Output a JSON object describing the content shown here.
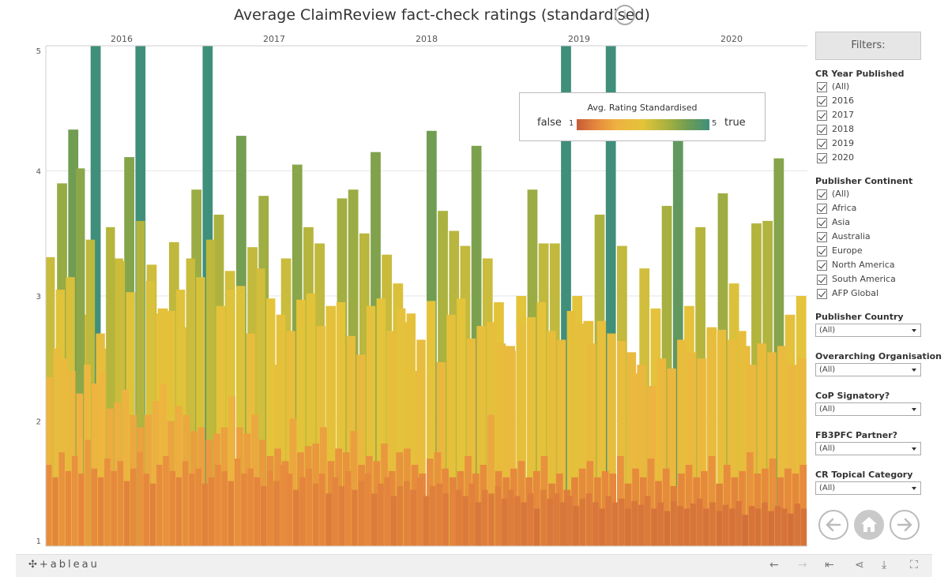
{
  "title": "Average ClaimReview fact-check ratings (standardised)",
  "info_icon": "info-icon",
  "legend": {
    "title": "Avg. Rating Standardised",
    "left_label": "false",
    "right_label": "true",
    "min": "1",
    "max": "5"
  },
  "filters": {
    "button": "Filters:",
    "year_title": "CR Year Published",
    "years": [
      "(All)",
      "2016",
      "2017",
      "2018",
      "2019",
      "2020"
    ],
    "continent_title": "Publisher Continent",
    "continents": [
      "(All)",
      "Africa",
      "Asia",
      "Australia",
      "Europe",
      "North America",
      "South America",
      "AFP Global"
    ],
    "dropdowns": [
      {
        "label": "Publisher Country",
        "value": "(All)"
      },
      {
        "label": "Overarching Organisation",
        "value": "(All)"
      },
      {
        "label": "CoP Signatory?",
        "value": "(All)"
      },
      {
        "label": "FB3PFC Partner?",
        "value": "(All)"
      },
      {
        "label": "CR Topical Category",
        "value": "(All)"
      }
    ]
  },
  "nav": {
    "back": "arrow-left-icon",
    "home": "home-icon",
    "forward": "arrow-right-icon"
  },
  "toolbar": {
    "logo": "+ableau"
  },
  "colors": {
    "false": "#c45c37",
    "mid": "#e3c43a",
    "true": "#3f8f7b",
    "grid": "#e6e6e6"
  },
  "chart_data": {
    "type": "bar",
    "title": "Average ClaimReview fact-check ratings (standardised)",
    "x_ticks": [
      "2016",
      "2017",
      "2018",
      "2019",
      "2020"
    ],
    "y_ticks": [
      1,
      2,
      3,
      4,
      5
    ],
    "ylim": [
      1,
      5
    ],
    "color_scale": "Avg. Rating Standardised",
    "series": [
      {
        "values": [
          2.32,
          3.9,
          4.33,
          2.85,
          5.0,
          2.58,
          3.3,
          4.11,
          5.0,
          3.25,
          2.9,
          3.43,
          2.75,
          3.85,
          5.0,
          3.65,
          3.2,
          4.28,
          3.39,
          3.8,
          2.45,
          3.3,
          4.05,
          3.55,
          3.42,
          2.92,
          3.78,
          3.85,
          3.5,
          4.15,
          3.33,
          3.1,
          2.79,
          2.4,
          4.32,
          3.68,
          3.52,
          3.4,
          4.2,
          3.3,
          2.95,
          2.6,
          3.0,
          3.85,
          3.42,
          3.42,
          5.0,
          3.0,
          2.8,
          3.65,
          5.0,
          3.4,
          2.38,
          3.22,
          2.9,
          3.72,
          4.53,
          2.92,
          3.55,
          2.75,
          3.82,
          3.1,
          2.6,
          3.58,
          3.6,
          4.1,
          2.85,
          3.0
        ]
      },
      {
        "values": [
          3.31,
          3.05,
          3.15,
          4.02,
          3.45,
          2.7,
          3.55,
          3.28,
          3.03,
          3.6,
          3.12,
          2.86,
          2.88,
          3.05,
          3.3,
          3.15,
          3.45,
          2.92,
          3.05,
          3.08,
          2.7,
          3.22,
          2.98,
          2.85,
          2.72,
          2.97,
          3.02,
          2.76,
          2.88,
          2.95,
          2.68,
          2.53,
          2.92,
          2.98,
          2.72,
          2.9,
          2.86,
          2.65,
          2.96,
          2.47,
          2.85,
          2.98,
          2.66,
          2.76,
          2.79,
          2.62,
          2.56,
          2.78,
          2.83,
          2.95,
          2.72,
          2.65,
          2.88,
          2.78,
          2.62,
          2.8,
          2.7,
          2.64,
          2.55,
          2.45,
          2.28,
          2.5,
          2.42,
          2.65,
          2.55,
          2.5,
          2.64,
          2.73,
          2.65,
          2.72,
          2.45,
          2.62,
          2.55,
          2.6,
          2.45,
          2.5
        ]
      },
      {
        "values": [
          2.35,
          2.58,
          2.5,
          2.4,
          2.22,
          2.45,
          2.3,
          2.38,
          2.1,
          2.15,
          2.25,
          2.05,
          1.95,
          2.05,
          2.16,
          2.3,
          2.0,
          2.12,
          2.05,
          1.92,
          1.95,
          1.85,
          1.9,
          1.95,
          2.2,
          1.95,
          1.9,
          2.05,
          1.85,
          1.72,
          1.78,
          1.68,
          2.02,
          1.75,
          1.8,
          1.82,
          1.95,
          1.68,
          1.78,
          1.75,
          1.92,
          1.65,
          1.72,
          1.68,
          1.82,
          1.6,
          1.75,
          1.78,
          1.65,
          1.58,
          1.7,
          1.75,
          1.62,
          1.55,
          1.6,
          1.72,
          1.58,
          1.65,
          2.05,
          1.6,
          1.55,
          1.62,
          1.68,
          1.55,
          1.6,
          1.72,
          1.5,
          1.58,
          1.45,
          1.55,
          1.62,
          1.68,
          1.55,
          1.6,
          1.58,
          1.72,
          1.5,
          1.62,
          1.55,
          1.7,
          1.52,
          1.62,
          1.48,
          1.58,
          1.65,
          1.55,
          1.6,
          1.72,
          1.5,
          1.65,
          1.55,
          1.6,
          1.75,
          1.58,
          1.62,
          1.7,
          1.55,
          1.62,
          1.58,
          1.65
        ]
      },
      {
        "values": [
          1.65,
          1.55,
          1.75,
          1.6,
          1.72,
          1.58,
          1.85,
          1.62,
          1.55,
          1.7,
          1.6,
          1.68,
          1.52,
          1.62,
          1.75,
          1.58,
          1.5,
          1.65,
          1.72,
          1.6,
          1.55,
          1.68,
          1.58,
          1.62,
          1.5,
          1.55,
          1.65,
          1.6,
          1.52,
          1.7,
          1.58,
          1.62,
          1.55,
          1.48,
          1.6,
          1.52,
          1.65,
          1.58,
          1.45,
          1.55,
          1.62,
          1.5,
          1.58,
          1.42,
          1.55,
          1.48,
          1.6,
          1.45,
          1.52,
          1.58,
          1.42,
          1.5,
          1.55,
          1.4,
          1.48,
          1.52,
          1.45,
          1.55,
          1.4,
          1.48,
          1.5,
          1.42,
          1.55,
          1.45,
          1.4,
          1.5,
          1.35,
          1.45,
          1.42,
          1.48,
          1.38,
          1.45,
          1.4,
          1.35,
          1.42,
          1.3,
          1.45,
          1.38,
          1.42,
          1.35,
          1.4,
          1.32,
          1.38,
          1.42,
          1.35,
          1.3,
          1.4,
          1.35,
          1.38,
          1.3,
          1.36,
          1.33,
          1.4,
          1.3,
          1.35,
          1.28,
          1.36,
          1.32,
          1.3,
          1.34,
          1.38,
          1.3,
          1.35,
          1.28,
          1.33,
          1.3,
          1.36,
          1.25,
          1.32,
          1.3,
          1.35,
          1.28,
          1.32,
          1.3,
          1.26,
          1.34,
          1.3
        ]
      }
    ]
  }
}
